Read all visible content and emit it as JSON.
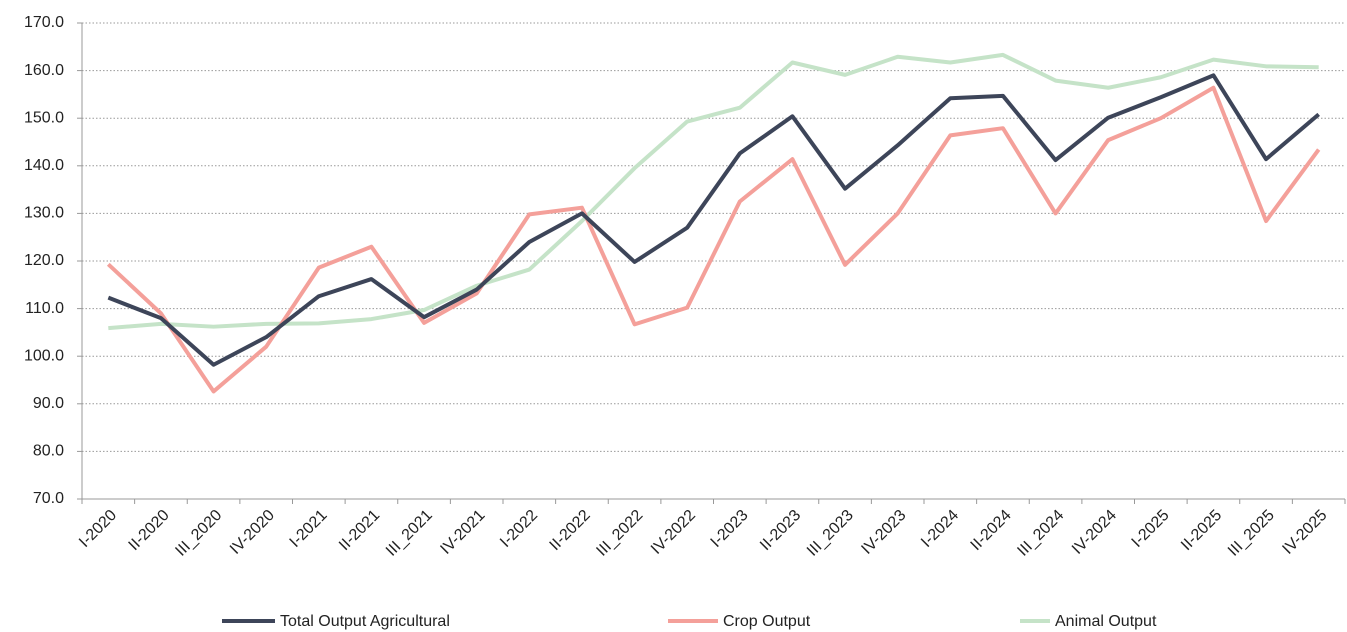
{
  "chart_data": {
    "type": "line",
    "categories": [
      "I-2020",
      "II-2020",
      "III_2020",
      "IV-2020",
      "I-2021",
      "II-2021",
      "III_2021",
      "IV-2021",
      "I-2022",
      "II-2022",
      "III_2022",
      "IV-2022",
      "I-2023",
      "II-2023",
      "III_2023",
      "IV-2023",
      "I-2024",
      "II-2024",
      "III_2024",
      "IV-2024",
      "I-2025",
      "II-2025",
      "III_2025",
      "IV-2025"
    ],
    "series": [
      {
        "name": "Total Output Agricultural",
        "color": "#3d4559",
        "values": [
          112.3,
          108,
          98.2,
          104,
          112.6,
          116.2,
          108.2,
          114,
          124,
          130,
          119.8,
          127,
          142.6,
          150.4,
          135.2,
          144.3,
          154.2,
          154.7,
          141.2,
          150.1,
          154.4,
          159,
          141.4,
          150.8
        ]
      },
      {
        "name": "Crop Output",
        "color": "#f4a09a",
        "values": [
          119.3,
          109,
          92.6,
          102,
          118.6,
          123,
          107,
          113.2,
          129.8,
          131.2,
          106.7,
          110.2,
          132.5,
          141.4,
          119.2,
          130,
          146.4,
          147.9,
          130,
          145.4,
          150,
          156.4,
          128.4,
          143.4
        ]
      },
      {
        "name": "Animal Output",
        "color": "#c5e3c8",
        "values": [
          105.9,
          106.8,
          106.2,
          106.8,
          106.9,
          107.8,
          109.7,
          114.8,
          118.2,
          128.4,
          139.5,
          149.3,
          152.2,
          161.7,
          159.1,
          162.9,
          161.7,
          163.3,
          157.9,
          156.4,
          158.6,
          162.3,
          160.9,
          160.7
        ]
      }
    ],
    "ylim": [
      70,
      170
    ],
    "yticks": [
      {
        "value": 70,
        "label": "70.0"
      },
      {
        "value": 80,
        "label": "80.0"
      },
      {
        "value": 90,
        "label": "90.0"
      },
      {
        "value": 100,
        "label": "100.0"
      },
      {
        "value": 110,
        "label": "110.0"
      },
      {
        "value": 120,
        "label": "120.0"
      },
      {
        "value": 130,
        "label": "130.0"
      },
      {
        "value": 140,
        "label": "140.0"
      },
      {
        "value": 150,
        "label": "150.0"
      },
      {
        "value": 160,
        "label": "160.0"
      },
      {
        "value": 170,
        "label": "170.0"
      }
    ],
    "grid": true,
    "legend": "bottom"
  }
}
